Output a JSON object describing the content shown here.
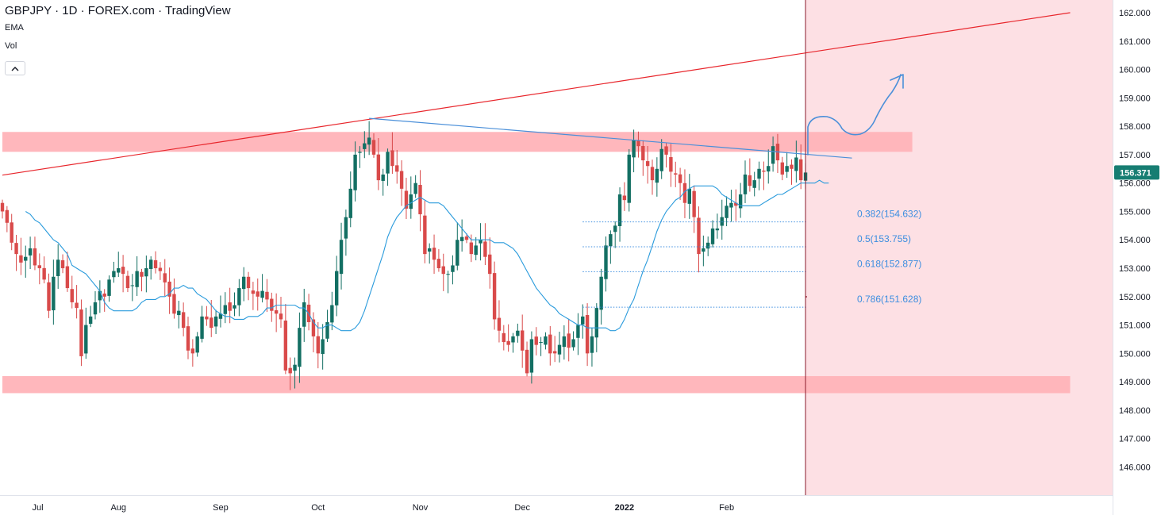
{
  "legend": {
    "title": "GBPJPY · 1D · FOREX.com · TradingView",
    "indicator1": "EMA",
    "indicator2": "Vol"
  },
  "icons": {
    "collapse": "chevron-up-icon"
  },
  "colors": {
    "bull": "#26a69a",
    "bear": "#ef5350",
    "candle_up": "#136f63",
    "candle_down": "#d94a4a",
    "ema": "#2a9bdc",
    "zone": "#ffb3b8",
    "projection": "#fde0e4",
    "trend_red": "#e8262c",
    "trend_blue": "#4a8fd9",
    "fib": "#3d8ee0",
    "price_tag": "#167d72"
  },
  "chart_data": {
    "type": "candlestick",
    "symbol": "GBPJPY",
    "interval": "1D",
    "ylim": [
      145.0,
      162.4
    ],
    "y_ticks": [
      "162.000",
      "161.000",
      "160.000",
      "159.000",
      "158.000",
      "157.000",
      "156.000",
      "155.000",
      "154.000",
      "153.000",
      "152.000",
      "151.000",
      "150.000",
      "149.000",
      "148.000",
      "147.000",
      "146.000"
    ],
    "x_ticks": [
      {
        "label": "Jul",
        "index": 3
      },
      {
        "label": "Aug",
        "index": 25
      },
      {
        "label": "Sep",
        "index": 47
      },
      {
        "label": "Oct",
        "index": 68
      },
      {
        "label": "Nov",
        "index": 90
      },
      {
        "label": "Dec",
        "index": 112
      },
      {
        "label": "2022",
        "index": 134
      },
      {
        "label": "Feb",
        "index": 156
      }
    ],
    "last_price": "156.371",
    "last_index": 172,
    "closes": [
      155.0,
      154.6,
      153.9,
      153.5,
      153.2,
      153.4,
      153.7,
      153.1,
      153.0,
      152.6,
      151.5,
      152.7,
      153.3,
      153.0,
      152.3,
      151.8,
      151.6,
      149.9,
      151.0,
      151.3,
      151.8,
      152.2,
      152.0,
      152.6,
      152.9,
      153.0,
      152.8,
      152.3,
      152.4,
      152.9,
      152.7,
      153.0,
      153.3,
      153.0,
      152.9,
      152.5,
      152.0,
      151.4,
      151.5,
      150.9,
      150.1,
      150.0,
      150.6,
      151.3,
      151.2,
      150.9,
      151.3,
      151.4,
      151.7,
      151.5,
      151.7,
      152.3,
      152.7,
      152.3,
      152.1,
      152.0,
      152.2,
      151.9,
      151.5,
      151.4,
      151.2,
      149.4,
      149.3,
      149.6,
      150.9,
      151.8,
      151.1,
      150.6,
      150.0,
      150.5,
      151.1,
      151.7,
      152.9,
      154.0,
      154.8,
      155.8,
      157.0,
      157.1,
      157.4,
      157.6,
      157.0,
      156.1,
      156.3,
      157.1,
      156.6,
      156.4,
      155.8,
      155.1,
      155.6,
      156.0,
      154.9,
      153.5,
      153.7,
      153.3,
      153.0,
      152.8,
      152.8,
      153.1,
      154.0,
      154.1,
      154.0,
      153.5,
      153.8,
      154.0,
      153.4,
      152.8,
      151.2,
      150.8,
      150.4,
      150.3,
      150.6,
      150.8,
      150.1,
      149.3,
      150.5,
      150.3,
      150.4,
      150.6,
      150.0,
      150.0,
      150.3,
      150.6,
      150.2,
      150.5,
      151.0,
      151.3,
      150.0,
      150.6,
      151.6,
      152.7,
      153.8,
      154.2,
      154.5,
      155.6,
      155.4,
      157.0,
      157.5,
      157.3,
      156.8,
      156.6,
      156.1,
      156.5,
      157.2,
      157.0,
      156.4,
      156.3,
      156.0,
      155.3,
      155.8,
      154.8,
      153.5,
      153.7,
      153.9,
      154.4,
      154.4,
      154.8,
      155.2,
      155.3,
      155.2,
      155.6,
      156.3,
      155.9,
      156.1,
      156.5,
      156.4,
      156.6,
      157.3,
      156.8,
      156.3,
      156.6,
      156.5,
      156.9,
      156.1,
      156.371
    ],
    "ema": [
      155.0,
      154.9,
      154.7,
      154.6,
      154.4,
      154.2,
      154.0,
      153.9,
      153.7,
      153.5,
      153.1,
      153.0,
      152.9,
      152.8,
      152.6,
      152.4,
      152.2,
      151.8,
      151.6,
      151.5,
      151.5,
      151.5,
      151.5,
      151.5,
      151.6,
      151.8,
      151.9,
      151.9,
      151.9,
      152.0,
      152.0,
      152.1,
      152.3,
      152.3,
      152.4,
      152.3,
      152.3,
      152.1,
      152.0,
      151.9,
      151.7,
      151.5,
      151.4,
      151.3,
      151.3,
      151.2,
      151.2,
      151.2,
      151.3,
      151.3,
      151.3,
      151.4,
      151.6,
      151.6,
      151.7,
      151.7,
      151.7,
      151.7,
      151.7,
      151.6,
      151.6,
      151.4,
      151.1,
      150.9,
      150.9,
      151.0,
      151.0,
      150.9,
      150.8,
      150.8,
      150.8,
      150.9,
      151.1,
      151.5,
      152.0,
      152.5,
      153.0,
      153.5,
      154.1,
      154.5,
      154.8,
      155.0,
      155.2,
      155.3,
      155.4,
      155.5,
      155.4,
      155.3,
      155.3,
      155.3,
      155.2,
      155.0,
      154.8,
      154.6,
      154.4,
      154.2,
      154.0,
      154.0,
      154.0,
      154.0,
      154.0,
      153.9,
      153.9,
      153.9,
      153.8,
      153.7,
      153.5,
      153.2,
      152.9,
      152.6,
      152.3,
      152.1,
      151.9,
      151.7,
      151.6,
      151.4,
      151.3,
      151.2,
      151.1,
      151.0,
      151.0,
      150.9,
      150.9,
      150.9,
      150.9,
      150.9,
      150.8,
      150.8,
      150.9,
      151.2,
      151.6,
      151.9,
      152.4,
      152.9,
      153.3,
      153.8,
      154.3,
      154.7,
      155.0,
      155.2,
      155.4,
      155.5,
      155.7,
      155.8,
      155.9,
      155.9,
      155.9,
      155.9,
      155.9,
      155.8,
      155.6,
      155.5,
      155.4,
      155.3,
      155.2,
      155.2,
      155.2,
      155.2,
      155.2,
      155.3,
      155.4,
      155.5,
      155.6,
      155.6,
      155.7,
      155.8,
      155.9,
      156.0,
      156.0,
      156.0,
      156.0,
      156.1,
      156.0,
      156.0
    ],
    "ema_start_index": 5,
    "zones": [
      {
        "from": 157.1,
        "to": 157.8,
        "x_from_index": 0,
        "x_to_index": 196
      },
      {
        "from": 148.6,
        "to": 149.2,
        "x_from_index": 0,
        "x_to_index": 230
      }
    ],
    "trendlines": [
      {
        "color": "trend_red",
        "from": [
          0,
          156.28
        ],
        "to": [
          230,
          162.0
        ]
      },
      {
        "color": "trend_blue",
        "from": [
          79,
          158.28
        ],
        "to": [
          183,
          156.88
        ]
      }
    ],
    "fib_levels": [
      {
        "label": "0.382(154.632)",
        "value": 154.632
      },
      {
        "label": "0.5(153.755)",
        "value": 153.755
      },
      {
        "label": "0.618(152.877)",
        "value": 152.877
      },
      {
        "label": "0.786(151.628)",
        "value": 151.628
      }
    ],
    "fib_x_from_index": 125,
    "projection_from_index": 173,
    "grid": false,
    "legend_position": "top-left"
  }
}
